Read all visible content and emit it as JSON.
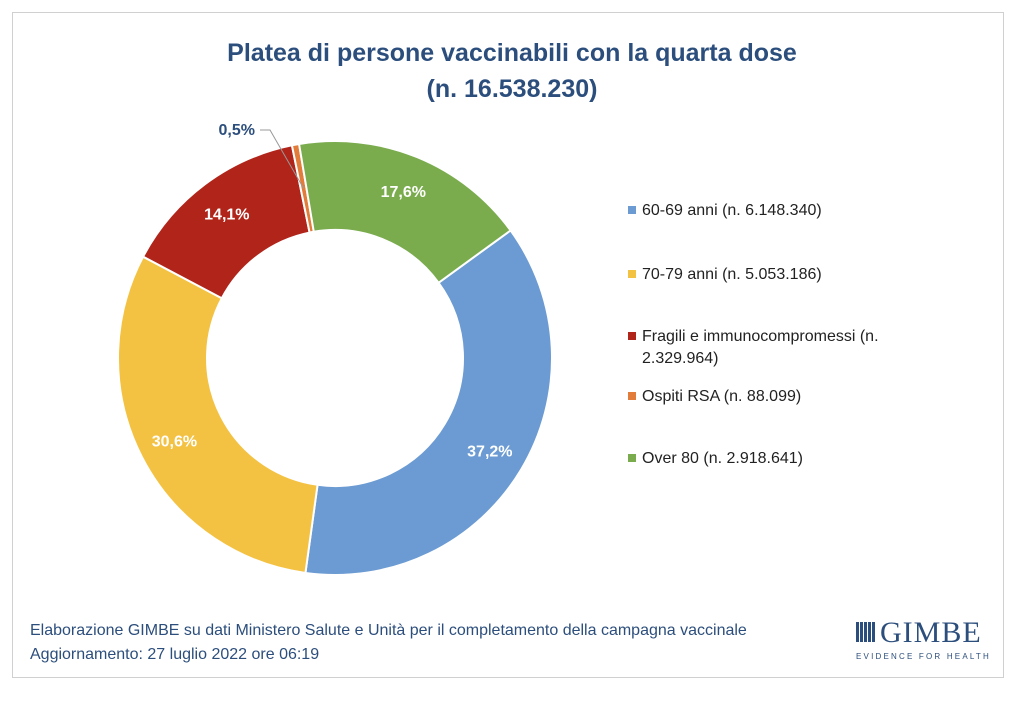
{
  "chart_data": {
    "type": "pie",
    "variant": "doughnut",
    "title": "Platea di persone vaccinabili con la quarta dose",
    "subtitle": "(n. 16.538.230)",
    "legend_position": "right",
    "series": [
      {
        "name": "60-69 anni",
        "legend": "60-69 anni (n. 6.148.340)",
        "value": 6148340,
        "percent_label": "37,2%",
        "color": "#6b9bd2"
      },
      {
        "name": "70-79 anni",
        "legend": "70-79 anni (n. 5.053.186)",
        "value": 5053186,
        "percent_label": "30,6%",
        "color": "#f4c243"
      },
      {
        "name": "Fragili e immunocompromessi",
        "legend_line1": "Fragili e immunocompromessi (n.",
        "legend_line2": "2.329.964)",
        "value": 2329964,
        "percent_label": "14,1%",
        "color": "#b0241a"
      },
      {
        "name": "Ospiti RSA",
        "legend": "Ospiti RSA (n. 88.099)",
        "value": 88099,
        "percent_label": "0,5%",
        "color": "#e27c3b"
      },
      {
        "name": "Over 80",
        "legend": "Over 80 (n. 2.918.641)",
        "value": 2918641,
        "percent_label": "17,6%",
        "color": "#7aac4e"
      }
    ]
  },
  "footer": {
    "line1": "Elaborazione GIMBE su dati Ministero Salute e Unità per il completamento della campagna vaccinale",
    "line2": "Aggiornamento: 27 luglio 2022 ore 06:19"
  },
  "logo": {
    "name": "GIMBE",
    "tagline": "EVIDENCE FOR HEALTH"
  }
}
